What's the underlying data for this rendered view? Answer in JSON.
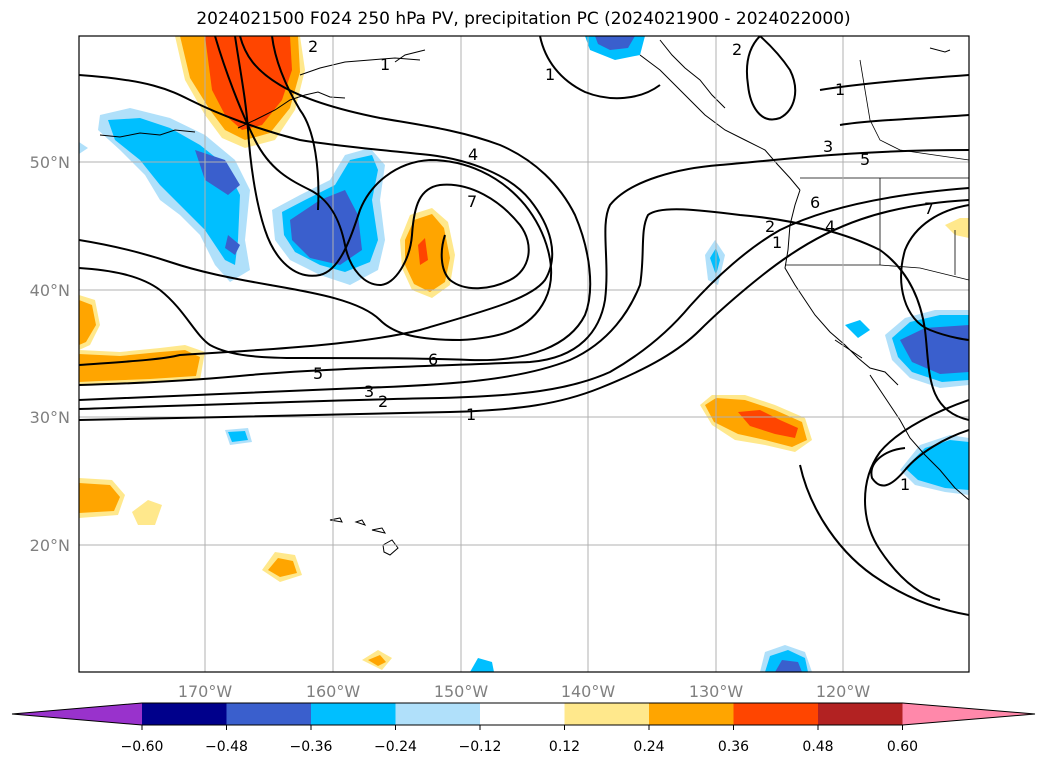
{
  "title": "2024021500 F024 250 hPa PV, precipitation PC (2024021900 - 2024022000)",
  "lat_labels": [
    "50°N",
    "40°N",
    "30°N",
    "20°N"
  ],
  "lon_labels": [
    "170°W",
    "160°W",
    "150°W",
    "140°W",
    "130°W",
    "120°W"
  ],
  "colorbar": {
    "ticks": [
      "−0.60",
      "−0.48",
      "−0.36",
      "−0.24",
      "−0.12",
      "0.12",
      "0.24",
      "0.36",
      "0.48",
      "0.60"
    ],
    "colors": [
      "#9932cc",
      "#00008b",
      "#3a5fcd",
      "#00bfff",
      "#b0e0fa",
      "#ffffff",
      "#ffe88c",
      "#ffa500",
      "#ff4500",
      "#b22222",
      "#ff88aa"
    ]
  },
  "contour_labels": [
    "1",
    "2",
    "3",
    "5",
    "6",
    "4",
    "7",
    "1",
    "2",
    "3",
    "5",
    "6",
    "4",
    "2",
    "1",
    "1",
    "7",
    "1",
    "2",
    "1"
  ],
  "colors": {
    "grid": "#b0b0b0",
    "contour": "#000000",
    "neg_light": "#b0e0fa",
    "neg_mid": "#00bfff",
    "neg_strong": "#3a5fcd",
    "pos_light": "#ffe88c",
    "pos_mid": "#ffa500",
    "pos_strong": "#ff4500"
  }
}
